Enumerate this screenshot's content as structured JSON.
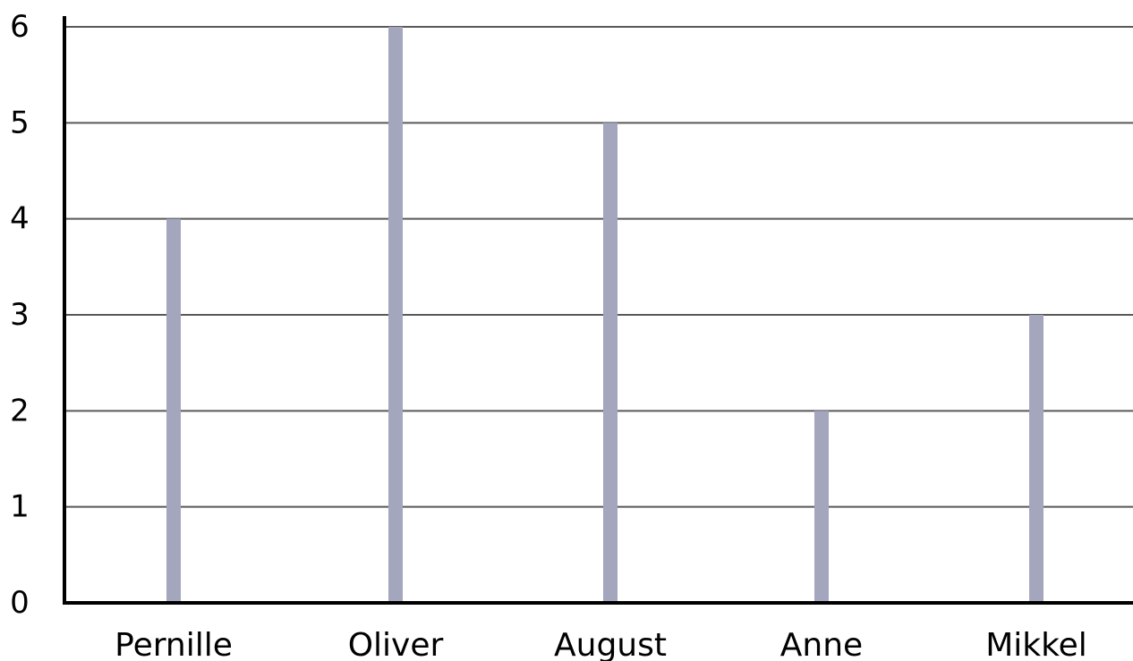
{
  "chart_data": {
    "type": "bar",
    "categories": [
      "Pernille",
      "Oliver",
      "August",
      "Anne",
      "Mikkel"
    ],
    "values": [
      4,
      6,
      5,
      2,
      3
    ],
    "title": "",
    "xlabel": "",
    "ylabel": "",
    "ylim": [
      0,
      6
    ],
    "yticks": [
      0,
      1,
      2,
      3,
      4,
      5,
      6
    ],
    "grid": true,
    "bar_color": "#a3a6bc",
    "grid_color": "#595959",
    "axis_color": "#000000"
  }
}
